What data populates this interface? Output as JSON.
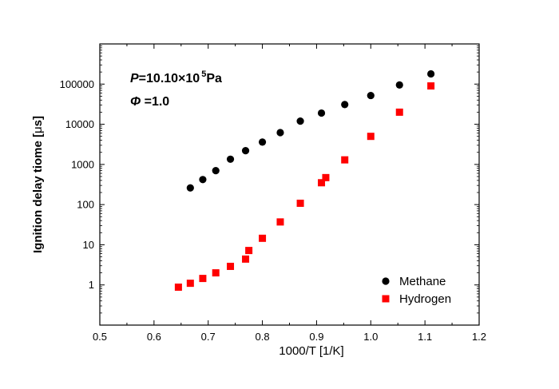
{
  "chart_data": {
    "type": "scatter",
    "xlabel": "1000/T  [1/K]",
    "ylabel": "Ignition delay tiome [",
    "ylabel_symbol": "μ",
    "ylabel_unit": "s]",
    "xlim": [
      0.5,
      1.2
    ],
    "ylim": [
      0.1,
      1000000
    ],
    "y_scale": "log",
    "x_ticks": [
      "0.5",
      "0.6",
      "0.7",
      "0.8",
      "0.9",
      "1.0",
      "1.1",
      "1.2"
    ],
    "y_ticks": [
      "1",
      "10",
      "100",
      "1000",
      "10000",
      "100000"
    ],
    "legend_position": "bottom-right",
    "annotations": {
      "pressure_symbol": "P",
      "pressure_value": "=10.10×10",
      "pressure_exponent": "5",
      "pressure_unit": "Pa",
      "phi_symbol": "Φ",
      "phi_value": " =1.0"
    },
    "series": [
      {
        "name": "Methane",
        "marker": "circle",
        "color": "#000000",
        "x": [
          0.667,
          0.69,
          0.714,
          0.741,
          0.769,
          0.8,
          0.833,
          0.87,
          0.909,
          0.952,
          1.0,
          1.053,
          1.111
        ],
        "y": [
          260,
          420,
          700,
          1350,
          2200,
          3600,
          6200,
          12000,
          19000,
          31000,
          52000,
          95000,
          180000
        ]
      },
      {
        "name": "Hydrogen",
        "marker": "square",
        "color": "#ff0000",
        "x": [
          0.645,
          0.667,
          0.69,
          0.714,
          0.741,
          0.769,
          0.775,
          0.8,
          0.833,
          0.87,
          0.909,
          0.917,
          0.952,
          1.0,
          1.053,
          1.111
        ],
        "y": [
          0.88,
          1.1,
          1.45,
          2.0,
          2.9,
          4.4,
          7.2,
          14.5,
          37,
          108,
          350,
          470,
          1300,
          5000,
          20000,
          90000
        ]
      }
    ]
  }
}
